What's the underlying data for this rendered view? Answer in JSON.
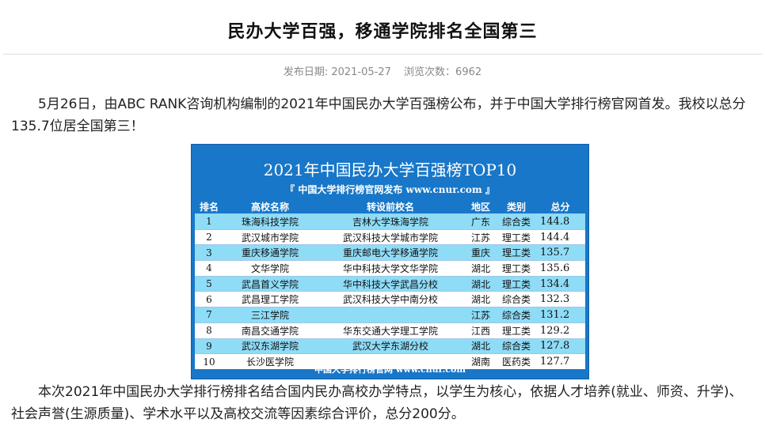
{
  "article": {
    "title": "民办大学百强，移通学院排名全国第三",
    "publish_label": "发布日期: 2021-05-27",
    "views_label": "浏览次数：6962",
    "paragraph1": "5月26日，由ABC RANK咨询机构编制的2021年中国民办大学百强榜公布，并于中国大学排行榜官网首发。我校以总分135.7位居全国第三！",
    "paragraph2": "本次2021年中国民办大学排行榜排名结合国内民办高校办学特点，以学生为核心，依据人才培养(就业、师资、升学)、社会声誉(生源质量)、学术水平以及高校交流等因素综合评价，总分200分。"
  },
  "figure": {
    "title": "2021年中国民办大学百强榜TOP10",
    "subtitle": "『 中国大学排行榜官网发布 www.cnur.com 』",
    "footer": "中国大学排行榜官网 www.cnur.com",
    "colors": {
      "panel": "#1877c8",
      "stripe": "#8fdcf7",
      "plain": "#ffffff"
    },
    "headers": [
      "排名",
      "高校名称",
      "转设前校名",
      "地区",
      "类别",
      "总分"
    ],
    "rows": [
      {
        "rank": "1",
        "name": "珠海科技学院",
        "former": "吉林大学珠海学院",
        "region": "广东",
        "type": "综合类",
        "score": "144.8"
      },
      {
        "rank": "2",
        "name": "武汉城市学院",
        "former": "武汉科技大学城市学院",
        "region": "江苏",
        "type": "理工类",
        "score": "144.4"
      },
      {
        "rank": "3",
        "name": "重庆移通学院",
        "former": "重庆邮电大学移通学院",
        "region": "重庆",
        "type": "理工类",
        "score": "135.7"
      },
      {
        "rank": "4",
        "name": "文华学院",
        "former": "华中科技大学文华学院",
        "region": "湖北",
        "type": "理工类",
        "score": "135.6"
      },
      {
        "rank": "5",
        "name": "武昌首义学院",
        "former": "华中科技大学武昌分校",
        "region": "湖北",
        "type": "理工类",
        "score": "134.4"
      },
      {
        "rank": "6",
        "name": "武昌理工学院",
        "former": "武汉科技大学中南分校",
        "region": "湖北",
        "type": "综合类",
        "score": "132.3"
      },
      {
        "rank": "7",
        "name": "三江学院",
        "former": "",
        "region": "江苏",
        "type": "综合类",
        "score": "131.2"
      },
      {
        "rank": "8",
        "name": "南昌交通学院",
        "former": "华东交通大学理工学院",
        "region": "江西",
        "type": "理工类",
        "score": "129.2"
      },
      {
        "rank": "9",
        "name": "武汉东湖学院",
        "former": "武汉大学东湖分校",
        "region": "湖北",
        "type": "综合类",
        "score": "127.8"
      },
      {
        "rank": "10",
        "name": "长沙医学院",
        "former": "",
        "region": "湖南",
        "type": "医药类",
        "score": "127.7"
      }
    ]
  }
}
